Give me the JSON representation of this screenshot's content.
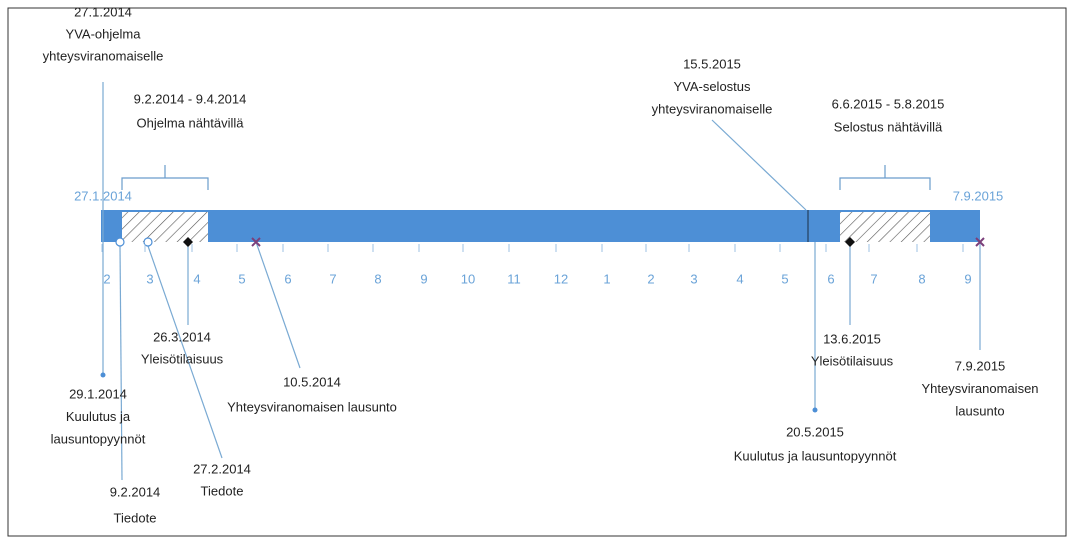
{
  "timeline": {
    "start_label": "27.1.2014",
    "end_label": "7.9.2015",
    "month_ticks": [
      "2",
      "3",
      "4",
      "5",
      "6",
      "7",
      "8",
      "9",
      "10",
      "11",
      "12",
      "1",
      "2",
      "3",
      "4",
      "5",
      "6",
      "7",
      "8",
      "9"
    ],
    "events": [
      {
        "lines": [
          "27.1.2014",
          "YVA-ohjelma",
          "yhteysviranomaiselle"
        ]
      },
      {
        "lines": [
          "9.2.2014 - 9.4.2014",
          "Ohjelma nähtävillä"
        ]
      },
      {
        "lines": [
          "15.5.2015",
          "YVA-selostus",
          "yhteysviranomaiselle"
        ]
      },
      {
        "lines": [
          "6.6.2015 - 5.8.2015",
          "Selostus nähtävillä"
        ]
      },
      {
        "lines": [
          "26.3.2014",
          "Yleisötilaisuus"
        ]
      },
      {
        "lines": [
          "10.5.2014",
          "Yhteysviranomaisen lausunto"
        ]
      },
      {
        "lines": [
          "29.1.2014",
          "Kuulutus ja",
          "lausuntopyynnöt"
        ]
      },
      {
        "lines": [
          "27.2.2014",
          "Tiedote"
        ]
      },
      {
        "lines": [
          "9.2.2014",
          "Tiedote"
        ]
      },
      {
        "lines": [
          "13.6.2015",
          "Yleisötilaisuus"
        ]
      },
      {
        "lines": [
          "20.5.2015",
          "Kuulutus ja lausuntopyynnöt"
        ]
      },
      {
        "lines": [
          "7.9.2015",
          "Yhteysviranomaisen",
          "lausunto"
        ]
      }
    ]
  }
}
